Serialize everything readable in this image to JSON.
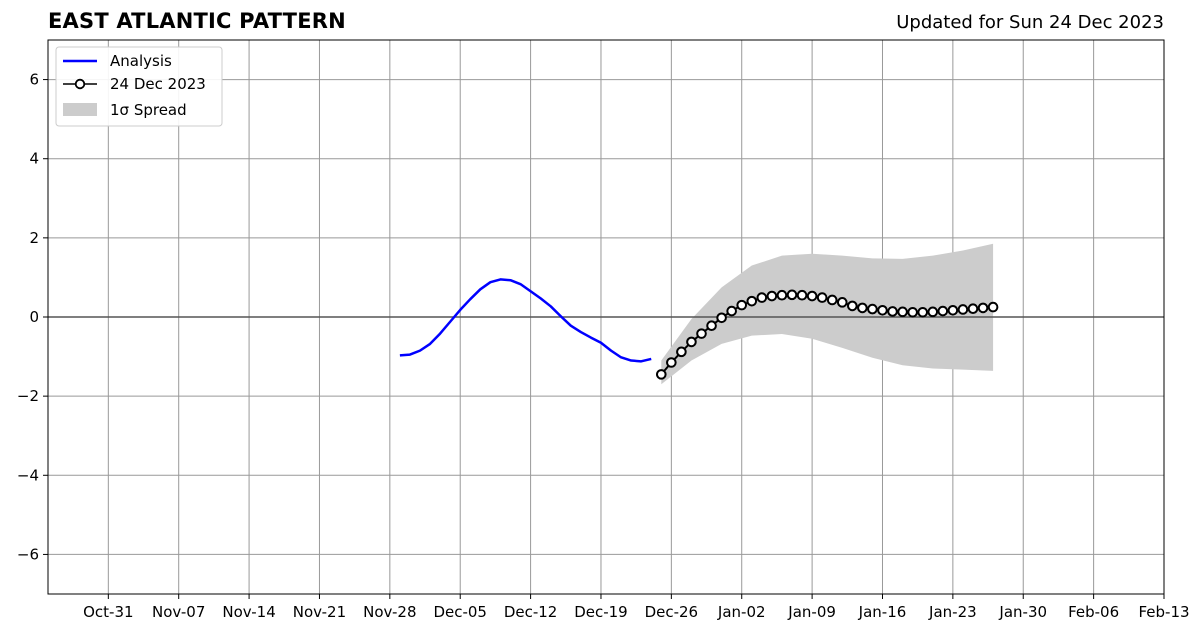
{
  "header": {
    "title": "EAST ATLANTIC PATTERN",
    "subtitle": "Updated for Sun 24 Dec 2023"
  },
  "chart_data": {
    "type": "line",
    "title": "EAST ATLANTIC PATTERN",
    "subtitle": "Updated for Sun 24 Dec 2023",
    "xlabel": "",
    "ylabel": "",
    "x_axis_type": "date",
    "xlim": [
      "2023-10-25",
      "2024-02-13"
    ],
    "ylim": [
      -7,
      7
    ],
    "grid": true,
    "legend_position": "top-left",
    "x_ticks": [
      {
        "date": "2023-10-31",
        "label": "Oct-31"
      },
      {
        "date": "2023-11-07",
        "label": "Nov-07"
      },
      {
        "date": "2023-11-14",
        "label": "Nov-14"
      },
      {
        "date": "2023-11-21",
        "label": "Nov-21"
      },
      {
        "date": "2023-11-28",
        "label": "Nov-28"
      },
      {
        "date": "2023-12-05",
        "label": "Dec-05"
      },
      {
        "date": "2023-12-12",
        "label": "Dec-12"
      },
      {
        "date": "2023-12-19",
        "label": "Dec-19"
      },
      {
        "date": "2023-12-26",
        "label": "Dec-26"
      },
      {
        "date": "2024-01-02",
        "label": "Jan-02"
      },
      {
        "date": "2024-01-09",
        "label": "Jan-09"
      },
      {
        "date": "2024-01-16",
        "label": "Jan-16"
      },
      {
        "date": "2024-01-23",
        "label": "Jan-23"
      },
      {
        "date": "2024-01-30",
        "label": "Jan-30"
      },
      {
        "date": "2024-02-06",
        "label": "Feb-06"
      },
      {
        "date": "2024-02-13",
        "label": "Feb-13"
      }
    ],
    "y_ticks": [
      {
        "value": 6,
        "label": "6"
      },
      {
        "value": 4,
        "label": "4"
      },
      {
        "value": 2,
        "label": "2"
      },
      {
        "value": 0,
        "label": "0"
      },
      {
        "value": -2,
        "label": "−2"
      },
      {
        "value": -4,
        "label": "−4"
      },
      {
        "value": -6,
        "label": "−6"
      }
    ],
    "colors": {
      "analysis": "#0000ff",
      "forecast": "#000000",
      "spread": "#cccccc",
      "grid": "#999999"
    },
    "series": [
      {
        "name": "Analysis",
        "style": "line",
        "x": [
          "2023-11-29",
          "2023-11-30",
          "2023-12-01",
          "2023-12-02",
          "2023-12-03",
          "2023-12-04",
          "2023-12-05",
          "2023-12-06",
          "2023-12-07",
          "2023-12-08",
          "2023-12-09",
          "2023-12-10",
          "2023-12-11",
          "2023-12-12",
          "2023-12-13",
          "2023-12-14",
          "2023-12-15",
          "2023-12-16",
          "2023-12-17",
          "2023-12-18",
          "2023-12-19",
          "2023-12-20",
          "2023-12-21",
          "2023-12-22",
          "2023-12-23",
          "2023-12-24"
        ],
        "y": [
          -0.97,
          -0.95,
          -0.85,
          -0.68,
          -0.42,
          -0.12,
          0.18,
          0.45,
          0.7,
          0.88,
          0.95,
          0.93,
          0.83,
          0.65,
          0.47,
          0.27,
          0.02,
          -0.22,
          -0.38,
          -0.52,
          -0.65,
          -0.85,
          -1.02,
          -1.1,
          -1.12,
          -1.06
        ]
      },
      {
        "name": "24 Dec 2023",
        "style": "line-markers",
        "x": [
          "2023-12-25",
          "2023-12-26",
          "2023-12-27",
          "2023-12-28",
          "2023-12-29",
          "2023-12-30",
          "2023-12-31",
          "2024-01-01",
          "2024-01-02",
          "2024-01-03",
          "2024-01-04",
          "2024-01-05",
          "2024-01-06",
          "2024-01-07",
          "2024-01-08",
          "2024-01-09",
          "2024-01-10",
          "2024-01-11",
          "2024-01-12",
          "2024-01-13",
          "2024-01-14",
          "2024-01-15",
          "2024-01-16",
          "2024-01-17",
          "2024-01-18",
          "2024-01-19",
          "2024-01-20",
          "2024-01-21",
          "2024-01-22",
          "2024-01-23",
          "2024-01-24",
          "2024-01-25",
          "2024-01-26",
          "2024-01-27"
        ],
        "y": [
          -1.45,
          -1.15,
          -0.88,
          -0.63,
          -0.42,
          -0.22,
          -0.02,
          0.15,
          0.3,
          0.4,
          0.49,
          0.53,
          0.55,
          0.56,
          0.55,
          0.53,
          0.49,
          0.43,
          0.37,
          0.28,
          0.23,
          0.2,
          0.17,
          0.14,
          0.13,
          0.12,
          0.12,
          0.13,
          0.15,
          0.17,
          0.19,
          0.21,
          0.23,
          0.25
        ]
      }
    ],
    "spread": {
      "name": "1σ Spread",
      "x": [
        "2023-12-25",
        "2023-12-28",
        "2023-12-31",
        "2024-01-03",
        "2024-01-06",
        "2024-01-09",
        "2024-01-12",
        "2024-01-15",
        "2024-01-18",
        "2024-01-21",
        "2024-01-24",
        "2024-01-27"
      ],
      "upper": [
        -1.1,
        -0.05,
        0.75,
        1.3,
        1.55,
        1.6,
        1.55,
        1.48,
        1.47,
        1.55,
        1.68,
        1.85
      ],
      "lower": [
        -1.7,
        -1.1,
        -0.68,
        -0.47,
        -0.43,
        -0.55,
        -0.78,
        -1.03,
        -1.22,
        -1.3,
        -1.33,
        -1.36
      ]
    },
    "legend": [
      {
        "name": "Analysis",
        "symbol": "line"
      },
      {
        "name": "24 Dec 2023",
        "symbol": "line-marker"
      },
      {
        "name": "1σ Spread",
        "symbol": "patch"
      }
    ]
  }
}
